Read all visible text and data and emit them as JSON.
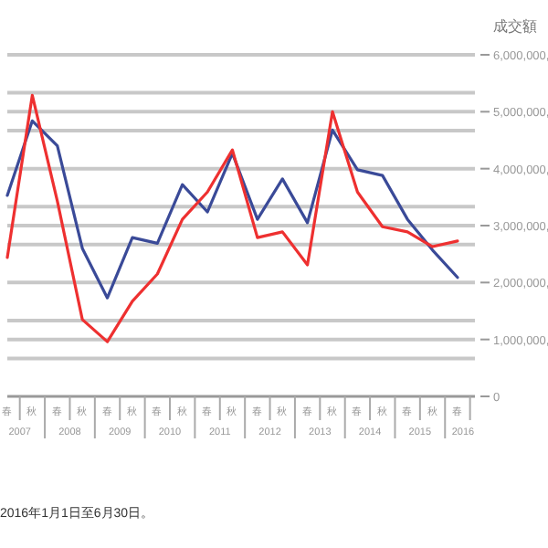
{
  "chart_data": {
    "type": "line",
    "ylabel": "成交額",
    "categories": [
      "春",
      "秋",
      "春",
      "秋",
      "春",
      "秋",
      "春",
      "秋",
      "春",
      "秋",
      "春",
      "秋",
      "春",
      "秋",
      "春",
      "秋",
      "春",
      "秋",
      "春"
    ],
    "series": [
      {
        "color": "#3a4a98",
        "values": [
          3530000,
          4840000,
          4400000,
          2600000,
          1730000,
          2790000,
          2690000,
          3720000,
          3240000,
          4270000,
          3110000,
          3820000,
          3050000,
          4680000,
          3980000,
          3880000,
          3110000,
          2570000,
          2090000
        ]
      },
      {
        "color": "#ee3030",
        "values": [
          2440000,
          5290000,
          3430000,
          1350000,
          960000,
          1670000,
          2150000,
          3110000,
          3590000,
          4330000,
          2790000,
          2890000,
          2310000,
          5000000,
          3590000,
          2980000,
          2890000,
          2630000,
          2730000
        ]
      }
    ],
    "ylim": [
      0,
      6000000
    ],
    "yticks": [
      {
        "value": 0,
        "label": "0"
      },
      {
        "value": 666667,
        "label": null
      },
      {
        "value": 1000000,
        "label": "1,000,000,"
      },
      {
        "value": 1333333,
        "label": null
      },
      {
        "value": 2000000,
        "label": "2,000,000,"
      },
      {
        "value": 2666667,
        "label": null
      },
      {
        "value": 3000000,
        "label": "3,000,000,"
      },
      {
        "value": 3333333,
        "label": null
      },
      {
        "value": 4000000,
        "label": "4,000,000,"
      },
      {
        "value": 4666667,
        "label": null
      },
      {
        "value": 5000000,
        "label": "5,000,000,"
      },
      {
        "value": 5333333,
        "label": null
      },
      {
        "value": 6000000,
        "label": "6,000,000,"
      }
    ],
    "grid": "y",
    "marker": "none",
    "line_style": "solid",
    "annotations": [
      "2007",
      "2008",
      "2009",
      "2010",
      "2011",
      "2012",
      "2013",
      "2014",
      "2015",
      "2016",
      "2016年1月1日至6月30日。"
    ]
  }
}
